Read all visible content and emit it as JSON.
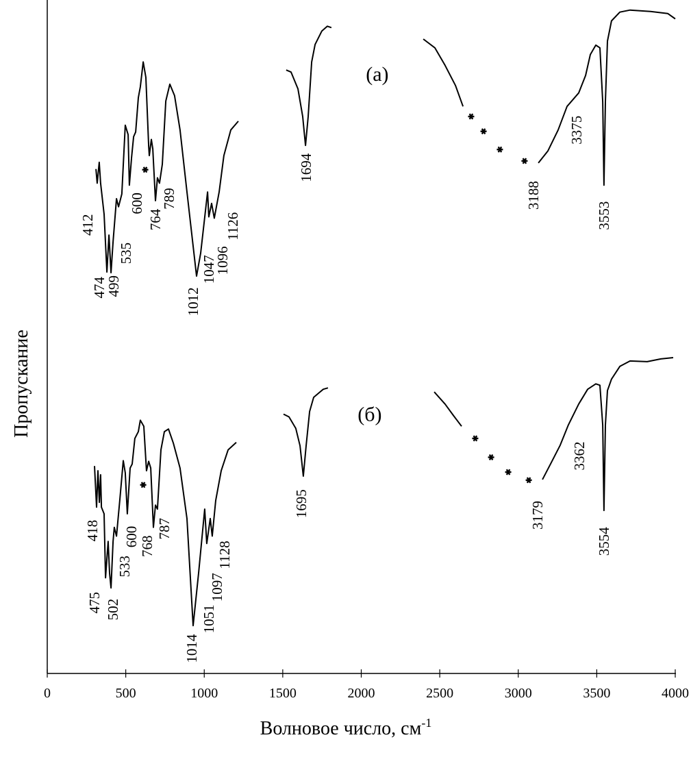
{
  "chart_data": {
    "type": "line",
    "title": "",
    "xlabel": "Волновое число, см",
    "xlabel_sup": "-1",
    "ylabel": "Пропускание",
    "xlim": [
      0,
      4000
    ],
    "ylim": [
      0,
      100
    ],
    "xticks": [
      0,
      500,
      1000,
      1500,
      2000,
      2500,
      3000,
      3500,
      4000
    ],
    "grid": false,
    "series": [
      {
        "name": "(a)",
        "segments": [
          [
            [
              310,
              74.9
            ],
            [
              318,
              72.8
            ],
            [
              331,
              75.9
            ],
            [
              340,
              72.8
            ],
            [
              362,
              68.2
            ],
            [
              380,
              59.6
            ],
            [
              393,
              65.1
            ],
            [
              406,
              59.5
            ],
            [
              419,
              64.1
            ],
            [
              441,
              70.5
            ],
            [
              454,
              69.3
            ],
            [
              475,
              71.2
            ],
            [
              497,
              81.4
            ],
            [
              515,
              80.0
            ],
            [
              523,
              72.5
            ],
            [
              537,
              76.6
            ],
            [
              550,
              79.7
            ],
            [
              563,
              80.4
            ],
            [
              580,
              85.5
            ],
            [
              593,
              87.1
            ],
            [
              611,
              90.8
            ],
            [
              628,
              88.5
            ],
            [
              646,
              78.3
            ],
            [
              650,
              76.9
            ],
            [
              663,
              79.3
            ],
            [
              672,
              77.9
            ],
            [
              689,
              70.2
            ],
            [
              702,
              73.6
            ],
            [
              715,
              72.8
            ],
            [
              733,
              75.6
            ],
            [
              755,
              85.0
            ],
            [
              781,
              87.5
            ],
            [
              811,
              85.8
            ],
            [
              846,
              80.7
            ],
            [
              890,
              71.5
            ],
            [
              951,
              59.0
            ],
            [
              977,
              62.4
            ],
            [
              1021,
              71.5
            ],
            [
              1029,
              67.8
            ],
            [
              1047,
              69.8
            ],
            [
              1064,
              67.6
            ],
            [
              1095,
              71.5
            ],
            [
              1125,
              76.9
            ],
            [
              1169,
              80.7
            ],
            [
              1217,
              82.0
            ]
          ],
          [
            [
              1522,
              89.6
            ],
            [
              1553,
              89.3
            ],
            [
              1597,
              86.8
            ],
            [
              1627,
              82.7
            ],
            [
              1645,
              78.4
            ],
            [
              1662,
              82.7
            ],
            [
              1684,
              90.8
            ],
            [
              1706,
              93.4
            ],
            [
              1749,
              95.4
            ],
            [
              1784,
              96.1
            ],
            [
              1810,
              95.9
            ]
          ],
          [
            [
              2395,
              94.2
            ],
            [
              2469,
              92.9
            ],
            [
              2534,
              90.3
            ],
            [
              2600,
              87.3
            ],
            [
              2648,
              84.2
            ]
          ],
          [
            [
              3128,
              75.8
            ],
            [
              3189,
              77.6
            ],
            [
              3254,
              80.7
            ],
            [
              3311,
              84.2
            ],
            [
              3385,
              86.2
            ],
            [
              3429,
              88.8
            ],
            [
              3459,
              91.9
            ],
            [
              3494,
              93.3
            ],
            [
              3520,
              92.9
            ],
            [
              3538,
              84.9
            ],
            [
              3546,
              72.5
            ],
            [
              3555,
              84.9
            ],
            [
              3568,
              93.9
            ],
            [
              3594,
              96.9
            ],
            [
              3647,
              98.2
            ],
            [
              3712,
              98.5
            ],
            [
              3843,
              98.3
            ],
            [
              3952,
              98.0
            ],
            [
              4000,
              97.2
            ]
          ]
        ],
        "asterisks": [
          [
            624,
            74.8
          ],
          [
            2700,
            82.7
          ],
          [
            2779,
            80.5
          ],
          [
            2883,
            77.8
          ],
          [
            3040,
            76.1
          ]
        ],
        "panel_label": {
          "text": "(a)",
          "x": 2102,
          "y": 89.0
        },
        "peak_labels": [
          {
            "text": "412",
            "x": 257,
            "y": 66.6
          },
          {
            "text": "474",
            "x": 331,
            "y": 57.3
          },
          {
            "text": "499",
            "x": 423,
            "y": 57.5
          },
          {
            "text": "535",
            "x": 502,
            "y": 62.4
          },
          {
            "text": "600",
            "x": 571,
            "y": 69.8
          },
          {
            "text": "764",
            "x": 689,
            "y": 67.4
          },
          {
            "text": "789",
            "x": 776,
            "y": 70.5
          },
          {
            "text": "1012",
            "x": 929,
            "y": 55.2
          },
          {
            "text": "1047",
            "x": 1029,
            "y": 60.0
          },
          {
            "text": "1096",
            "x": 1117,
            "y": 61.3
          },
          {
            "text": "1126",
            "x": 1182,
            "y": 66.4
          },
          {
            "text": "1694",
            "x": 1649,
            "y": 75.1
          },
          {
            "text": "3188",
            "x": 3097,
            "y": 71.0
          },
          {
            "text": "3375",
            "x": 3372,
            "y": 80.7
          },
          {
            "text": "3553",
            "x": 3546,
            "y": 68.0
          }
        ]
      },
      {
        "name": "(б)",
        "segments": [
          [
            [
              301,
              30.8
            ],
            [
              314,
              24.7
            ],
            [
              323,
              30.1
            ],
            [
              332,
              25.4
            ],
            [
              340,
              29.5
            ],
            [
              345,
              24.7
            ],
            [
              362,
              23.7
            ],
            [
              371,
              14.2
            ],
            [
              388,
              19.6
            ],
            [
              397,
              14.9
            ],
            [
              406,
              12.7
            ],
            [
              419,
              19.6
            ],
            [
              427,
              21.7
            ],
            [
              441,
              20.4
            ],
            [
              462,
              25.7
            ],
            [
              484,
              31.6
            ],
            [
              497,
              29.8
            ],
            [
              510,
              23.7
            ],
            [
              528,
              30.5
            ],
            [
              541,
              31.1
            ],
            [
              558,
              34.9
            ],
            [
              580,
              35.9
            ],
            [
              593,
              37.6
            ],
            [
              615,
              36.7
            ],
            [
              632,
              30.1
            ],
            [
              646,
              31.5
            ],
            [
              659,
              30.5
            ],
            [
              676,
              21.7
            ],
            [
              689,
              25.0
            ],
            [
              702,
              24.4
            ],
            [
              724,
              33.2
            ],
            [
              746,
              35.9
            ],
            [
              772,
              36.3
            ],
            [
              803,
              34.2
            ],
            [
              846,
              30.5
            ],
            [
              890,
              23.0
            ],
            [
              929,
              7.1
            ],
            [
              964,
              14.9
            ],
            [
              1003,
              24.4
            ],
            [
              1016,
              19.3
            ],
            [
              1038,
              23.0
            ],
            [
              1051,
              20.4
            ],
            [
              1073,
              25.7
            ],
            [
              1108,
              30.1
            ],
            [
              1152,
              33.2
            ],
            [
              1204,
              34.3
            ]
          ],
          [
            [
              1505,
              38.5
            ],
            [
              1540,
              38.1
            ],
            [
              1583,
              36.4
            ],
            [
              1610,
              33.8
            ],
            [
              1631,
              29.3
            ],
            [
              1649,
              33.8
            ],
            [
              1671,
              38.9
            ],
            [
              1697,
              41.0
            ],
            [
              1727,
              41.6
            ],
            [
              1758,
              42.2
            ],
            [
              1788,
              42.4
            ]
          ],
          [
            [
              2465,
              41.8
            ],
            [
              2534,
              40.0
            ],
            [
              2587,
              38.3
            ],
            [
              2639,
              36.7
            ]
          ],
          [
            [
              3154,
              28.8
            ],
            [
              3210,
              31.3
            ],
            [
              3267,
              33.9
            ],
            [
              3319,
              36.9
            ],
            [
              3385,
              40.0
            ],
            [
              3442,
              42.2
            ],
            [
              3494,
              43.0
            ],
            [
              3520,
              42.8
            ],
            [
              3538,
              36.9
            ],
            [
              3546,
              24.2
            ],
            [
              3555,
              36.9
            ],
            [
              3568,
              42.0
            ],
            [
              3594,
              43.7
            ],
            [
              3647,
              45.6
            ],
            [
              3712,
              46.4
            ],
            [
              3821,
              46.3
            ],
            [
              3908,
              46.7
            ],
            [
              3987,
              46.9
            ]
          ]
        ],
        "asterisks": [
          [
            611,
            28.0
          ],
          [
            2726,
            34.9
          ],
          [
            2827,
            32.1
          ],
          [
            2936,
            29.9
          ],
          [
            3067,
            28.7
          ]
        ],
        "panel_label": {
          "text": "(б)",
          "x": 2054,
          "y": 38.5
        },
        "peak_labels": [
          {
            "text": "418",
            "x": 288,
            "y": 21.2
          },
          {
            "text": "475",
            "x": 301,
            "y": 10.5
          },
          {
            "text": "502",
            "x": 419,
            "y": 9.5
          },
          {
            "text": "533",
            "x": 493,
            "y": 15.9
          },
          {
            "text": "600",
            "x": 537,
            "y": 20.3
          },
          {
            "text": "768",
            "x": 637,
            "y": 18.9
          },
          {
            "text": "787",
            "x": 746,
            "y": 21.5
          },
          {
            "text": "1014",
            "x": 920,
            "y": 3.7
          },
          {
            "text": "1051",
            "x": 1029,
            "y": 8.1
          },
          {
            "text": "1097",
            "x": 1082,
            "y": 12.8
          },
          {
            "text": "1128",
            "x": 1130,
            "y": 17.6
          },
          {
            "text": "1695",
            "x": 1618,
            "y": 25.2
          },
          {
            "text": "3179",
            "x": 3123,
            "y": 23.5
          },
          {
            "text": "3362",
            "x": 3389,
            "y": 32.3
          },
          {
            "text": "3554",
            "x": 3546,
            "y": 19.6
          }
        ]
      }
    ]
  }
}
